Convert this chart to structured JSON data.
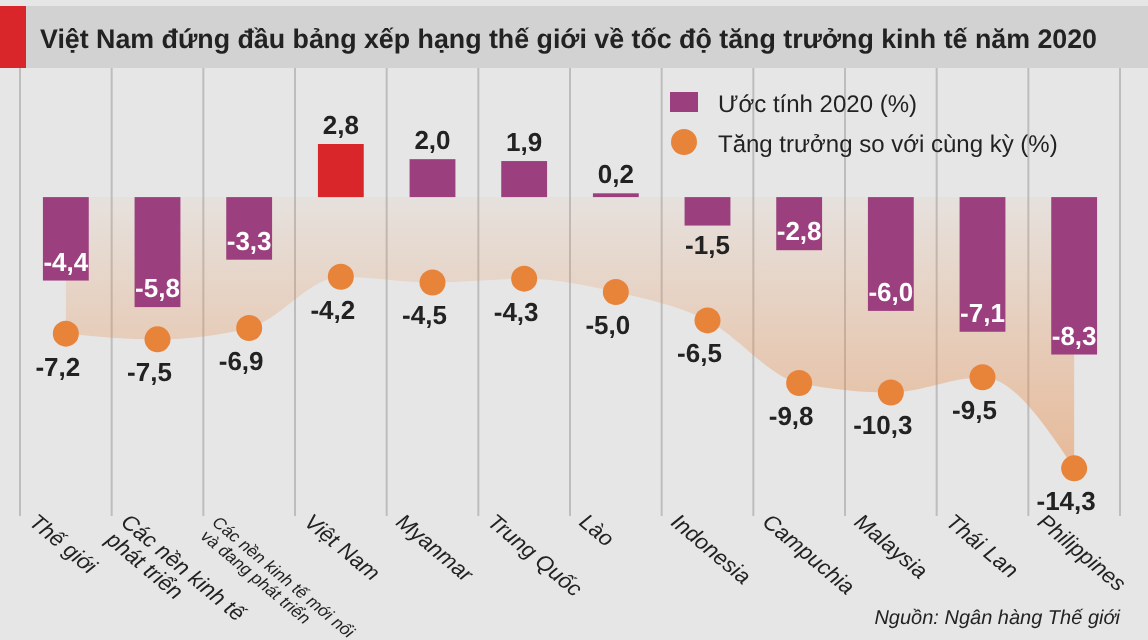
{
  "chart_data": {
    "type": "bar",
    "title": "Việt Nam đứng đầu bảng xếp hạng thế giới về tốc độ tăng trưởng kinh tế năm 2020",
    "categories": [
      "Thế giới",
      "Các nền kinh tế phát triển",
      "Các nền kinh tế mới nổi và đang phát triển",
      "Việt Nam",
      "Myanmar",
      "Trung Quốc",
      "Lào",
      "Indonesia",
      "Campuchia",
      "Malaysia",
      "Thái Lan",
      "Philippines"
    ],
    "series": [
      {
        "name": "Ước tính 2020 (%)",
        "color": "#9b3f7e",
        "colors": [
          "#9b3f7e",
          "#9b3f7e",
          "#9b3f7e",
          "#d9262b",
          "#9b3f7e",
          "#9b3f7e",
          "#9b3f7e",
          "#9b3f7e",
          "#9b3f7e",
          "#9b3f7e",
          "#9b3f7e",
          "#9b3f7e"
        ],
        "values": [
          -4.4,
          -5.8,
          -3.3,
          2.8,
          2.0,
          1.9,
          0.2,
          -1.5,
          -2.8,
          -6.0,
          -7.1,
          -8.3
        ],
        "value_labels": [
          "-4,4",
          "-5,8",
          "-3,3",
          "2,8",
          "2,0",
          "1,9",
          "0,2",
          "-1,5",
          "-2,8",
          "-6,0",
          "-7,1",
          "-8,3"
        ]
      },
      {
        "name": "Tăng trưởng so với cùng kỳ (%)",
        "type": "area",
        "color": "#e8833a",
        "marker": "circle",
        "values": [
          -7.2,
          -7.5,
          -6.9,
          -4.2,
          -4.5,
          -4.3,
          -5.0,
          -6.5,
          -9.8,
          -10.3,
          -9.5,
          -14.3
        ],
        "value_labels": [
          "-7,2",
          "-7,5",
          "-6,9",
          "-4,2",
          "-4,5",
          "-4,3",
          "-5,0",
          "-6,5",
          "-9,8",
          "-10,3",
          "-9,5",
          "-14,3"
        ]
      }
    ],
    "grid": "x",
    "legend": "top right",
    "annotations": [
      "Nguồn: Ngân hàng Thế giới"
    ]
  }
}
